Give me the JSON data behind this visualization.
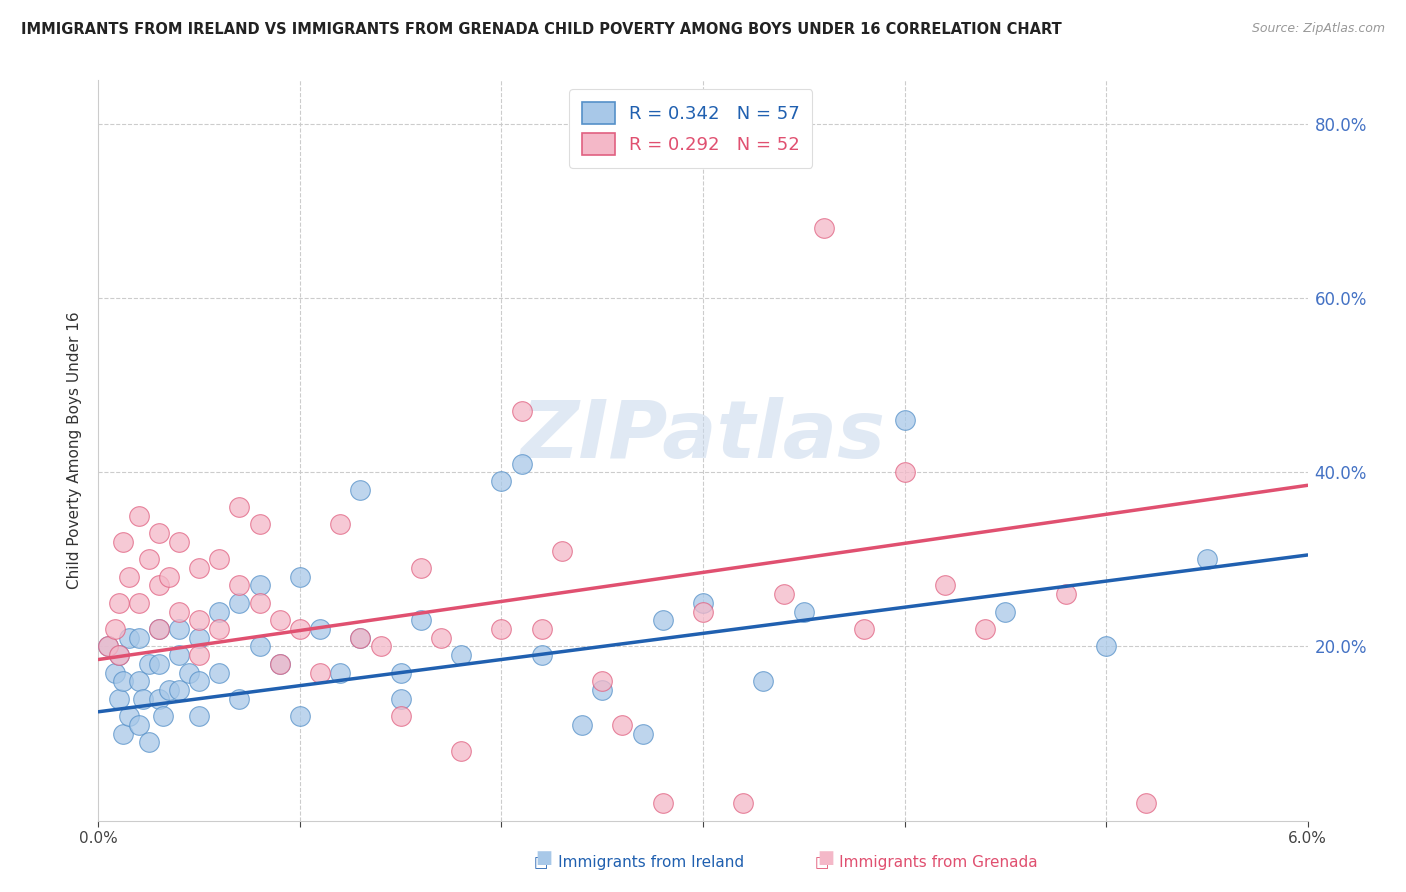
{
  "title": "IMMIGRANTS FROM IRELAND VS IMMIGRANTS FROM GRENADA CHILD POVERTY AMONG BOYS UNDER 16 CORRELATION CHART",
  "source": "Source: ZipAtlas.com",
  "ylabel": "Child Poverty Among Boys Under 16",
  "xmin": 0.0,
  "xmax": 0.06,
  "ymin": 0.0,
  "ymax": 0.85,
  "ireland_color": "#a8c8e8",
  "grenada_color": "#f4b8c8",
  "ireland_edge_color": "#5590c8",
  "grenada_edge_color": "#e06080",
  "ireland_line_color": "#2060b0",
  "grenada_line_color": "#e05070",
  "ireland_R": 0.342,
  "ireland_N": 57,
  "grenada_R": 0.292,
  "grenada_N": 52,
  "watermark": "ZIPatlas",
  "ireland_scatter_x": [
    0.0005,
    0.0008,
    0.001,
    0.001,
    0.0012,
    0.0012,
    0.0015,
    0.0015,
    0.002,
    0.002,
    0.002,
    0.0022,
    0.0025,
    0.0025,
    0.003,
    0.003,
    0.003,
    0.0032,
    0.0035,
    0.004,
    0.004,
    0.004,
    0.0045,
    0.005,
    0.005,
    0.005,
    0.006,
    0.006,
    0.007,
    0.007,
    0.008,
    0.008,
    0.009,
    0.01,
    0.01,
    0.011,
    0.012,
    0.013,
    0.013,
    0.015,
    0.015,
    0.016,
    0.018,
    0.02,
    0.021,
    0.022,
    0.024,
    0.025,
    0.027,
    0.028,
    0.03,
    0.033,
    0.035,
    0.04,
    0.045,
    0.05,
    0.055
  ],
  "ireland_scatter_y": [
    0.2,
    0.17,
    0.19,
    0.14,
    0.16,
    0.1,
    0.21,
    0.12,
    0.21,
    0.16,
    0.11,
    0.14,
    0.18,
    0.09,
    0.22,
    0.18,
    0.14,
    0.12,
    0.15,
    0.22,
    0.19,
    0.15,
    0.17,
    0.21,
    0.16,
    0.12,
    0.24,
    0.17,
    0.25,
    0.14,
    0.27,
    0.2,
    0.18,
    0.28,
    0.12,
    0.22,
    0.17,
    0.38,
    0.21,
    0.17,
    0.14,
    0.23,
    0.19,
    0.39,
    0.41,
    0.19,
    0.11,
    0.15,
    0.1,
    0.23,
    0.25,
    0.16,
    0.24,
    0.46,
    0.24,
    0.2,
    0.3
  ],
  "grenada_scatter_x": [
    0.0005,
    0.0008,
    0.001,
    0.001,
    0.0012,
    0.0015,
    0.002,
    0.002,
    0.0025,
    0.003,
    0.003,
    0.003,
    0.0035,
    0.004,
    0.004,
    0.005,
    0.005,
    0.005,
    0.006,
    0.006,
    0.007,
    0.007,
    0.008,
    0.008,
    0.009,
    0.009,
    0.01,
    0.011,
    0.012,
    0.013,
    0.014,
    0.015,
    0.016,
    0.017,
    0.018,
    0.02,
    0.021,
    0.022,
    0.023,
    0.025,
    0.026,
    0.028,
    0.03,
    0.032,
    0.034,
    0.036,
    0.038,
    0.04,
    0.042,
    0.044,
    0.048,
    0.052
  ],
  "grenada_scatter_y": [
    0.2,
    0.22,
    0.25,
    0.19,
    0.32,
    0.28,
    0.35,
    0.25,
    0.3,
    0.33,
    0.27,
    0.22,
    0.28,
    0.32,
    0.24,
    0.29,
    0.23,
    0.19,
    0.3,
    0.22,
    0.36,
    0.27,
    0.34,
    0.25,
    0.23,
    0.18,
    0.22,
    0.17,
    0.34,
    0.21,
    0.2,
    0.12,
    0.29,
    0.21,
    0.08,
    0.22,
    0.47,
    0.22,
    0.31,
    0.16,
    0.11,
    0.02,
    0.24,
    0.02,
    0.26,
    0.68,
    0.22,
    0.4,
    0.27,
    0.22,
    0.26,
    0.02
  ],
  "ireland_line_x0": 0.0,
  "ireland_line_y0": 0.125,
  "ireland_line_x1": 0.06,
  "ireland_line_y1": 0.305,
  "grenada_line_x0": 0.0,
  "grenada_line_y0": 0.185,
  "grenada_line_x1": 0.06,
  "grenada_line_y1": 0.385
}
